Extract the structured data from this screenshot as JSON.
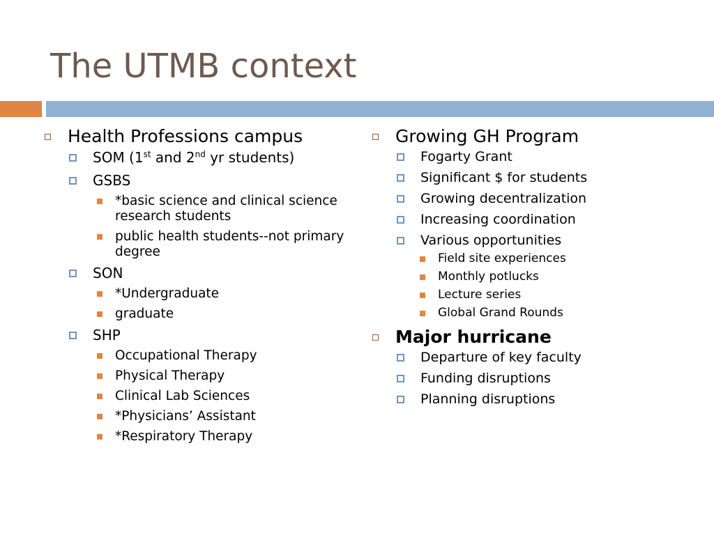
{
  "slide": {
    "title": "The UTMB context",
    "colors": {
      "title": "#6e5a4f",
      "bar_orange": "#df8545",
      "bar_blue": "#91b3d1"
    }
  },
  "left": {
    "heading": "Health Professions campus",
    "som": {
      "pre": "SOM (1",
      "sup1": "st",
      "mid": " and 2",
      "sup2": "nd",
      "post": " yr students)"
    },
    "gsbs": {
      "label": "GSBS",
      "items": [
        "*basic science and clinical science research students",
        "public health students--not primary degree"
      ]
    },
    "son": {
      "label": "SON",
      "items": [
        "*Undergraduate",
        "graduate"
      ]
    },
    "shp": {
      "label": "SHP",
      "items": [
        "Occupational Therapy",
        "Physical Therapy",
        "Clinical Lab Sciences",
        "*Physicians’ Assistant",
        "*Respiratory Therapy"
      ]
    }
  },
  "right": {
    "gh": {
      "heading": "Growing GH Program",
      "items": [
        "Fogarty Grant",
        "Significant $ for students",
        "Growing decentralization",
        "Increasing coordination",
        "Various opportunities"
      ],
      "opportunities": [
        "Field site experiences",
        "Monthly potlucks",
        "Lecture series",
        "Global Grand Rounds"
      ]
    },
    "hurricane": {
      "heading": "Major hurricane",
      "items": [
        "Departure of key faculty",
        "Funding disruptions",
        "Planning disruptions"
      ]
    }
  }
}
